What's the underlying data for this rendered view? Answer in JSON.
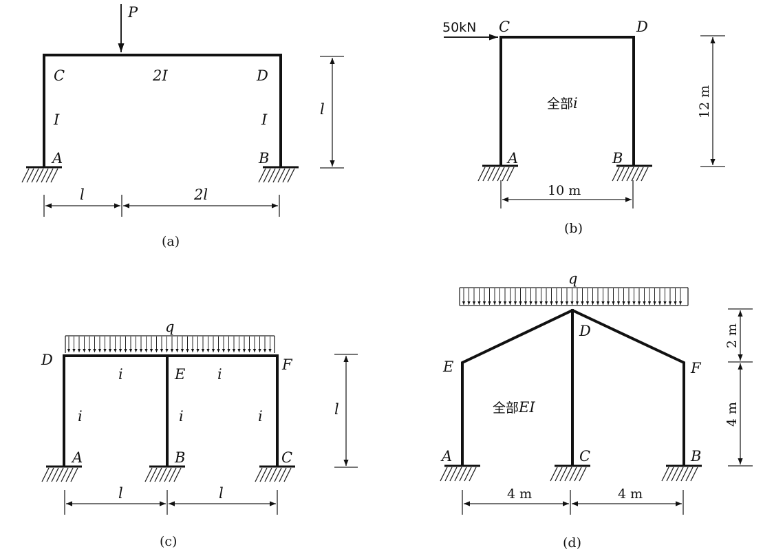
{
  "panel_a": {
    "caption": "(a)",
    "load": "P",
    "node_C": "C",
    "node_D": "D",
    "node_A": "A",
    "node_B": "B",
    "beam_I": "2I",
    "left_col_I": "I",
    "right_col_I": "I",
    "height": "l",
    "span_left": "l",
    "span_right": "2l"
  },
  "panel_b": {
    "caption": "(b)",
    "load": "50kN",
    "node_C": "C",
    "node_D": "D",
    "node_A": "A",
    "node_B": "B",
    "stiffness_prefix": "全部",
    "stiffness_symbol": "i",
    "height": "12 m",
    "span": "10 m"
  },
  "panel_c": {
    "caption": "(c)",
    "load": "q",
    "node_D": "D",
    "node_E": "E",
    "node_F": "F",
    "node_A": "A",
    "node_B": "B",
    "node_C": "C",
    "beam_left_i": "i",
    "beam_right_i": "i",
    "col_left_i": "i",
    "col_mid_i": "i",
    "col_right_i": "i",
    "height": "l",
    "span_left": "l",
    "span_right": "l"
  },
  "panel_d": {
    "caption": "(d)",
    "load": "q",
    "node_D": "D",
    "node_E": "E",
    "node_F": "F",
    "node_A": "A",
    "node_C": "C",
    "node_B": "B",
    "stiffness_prefix": "全部",
    "stiffness_symbol": "EI",
    "height_top": "2 m",
    "height_bottom": "4 m",
    "span_left": "4 m",
    "span_right": "4 m"
  }
}
